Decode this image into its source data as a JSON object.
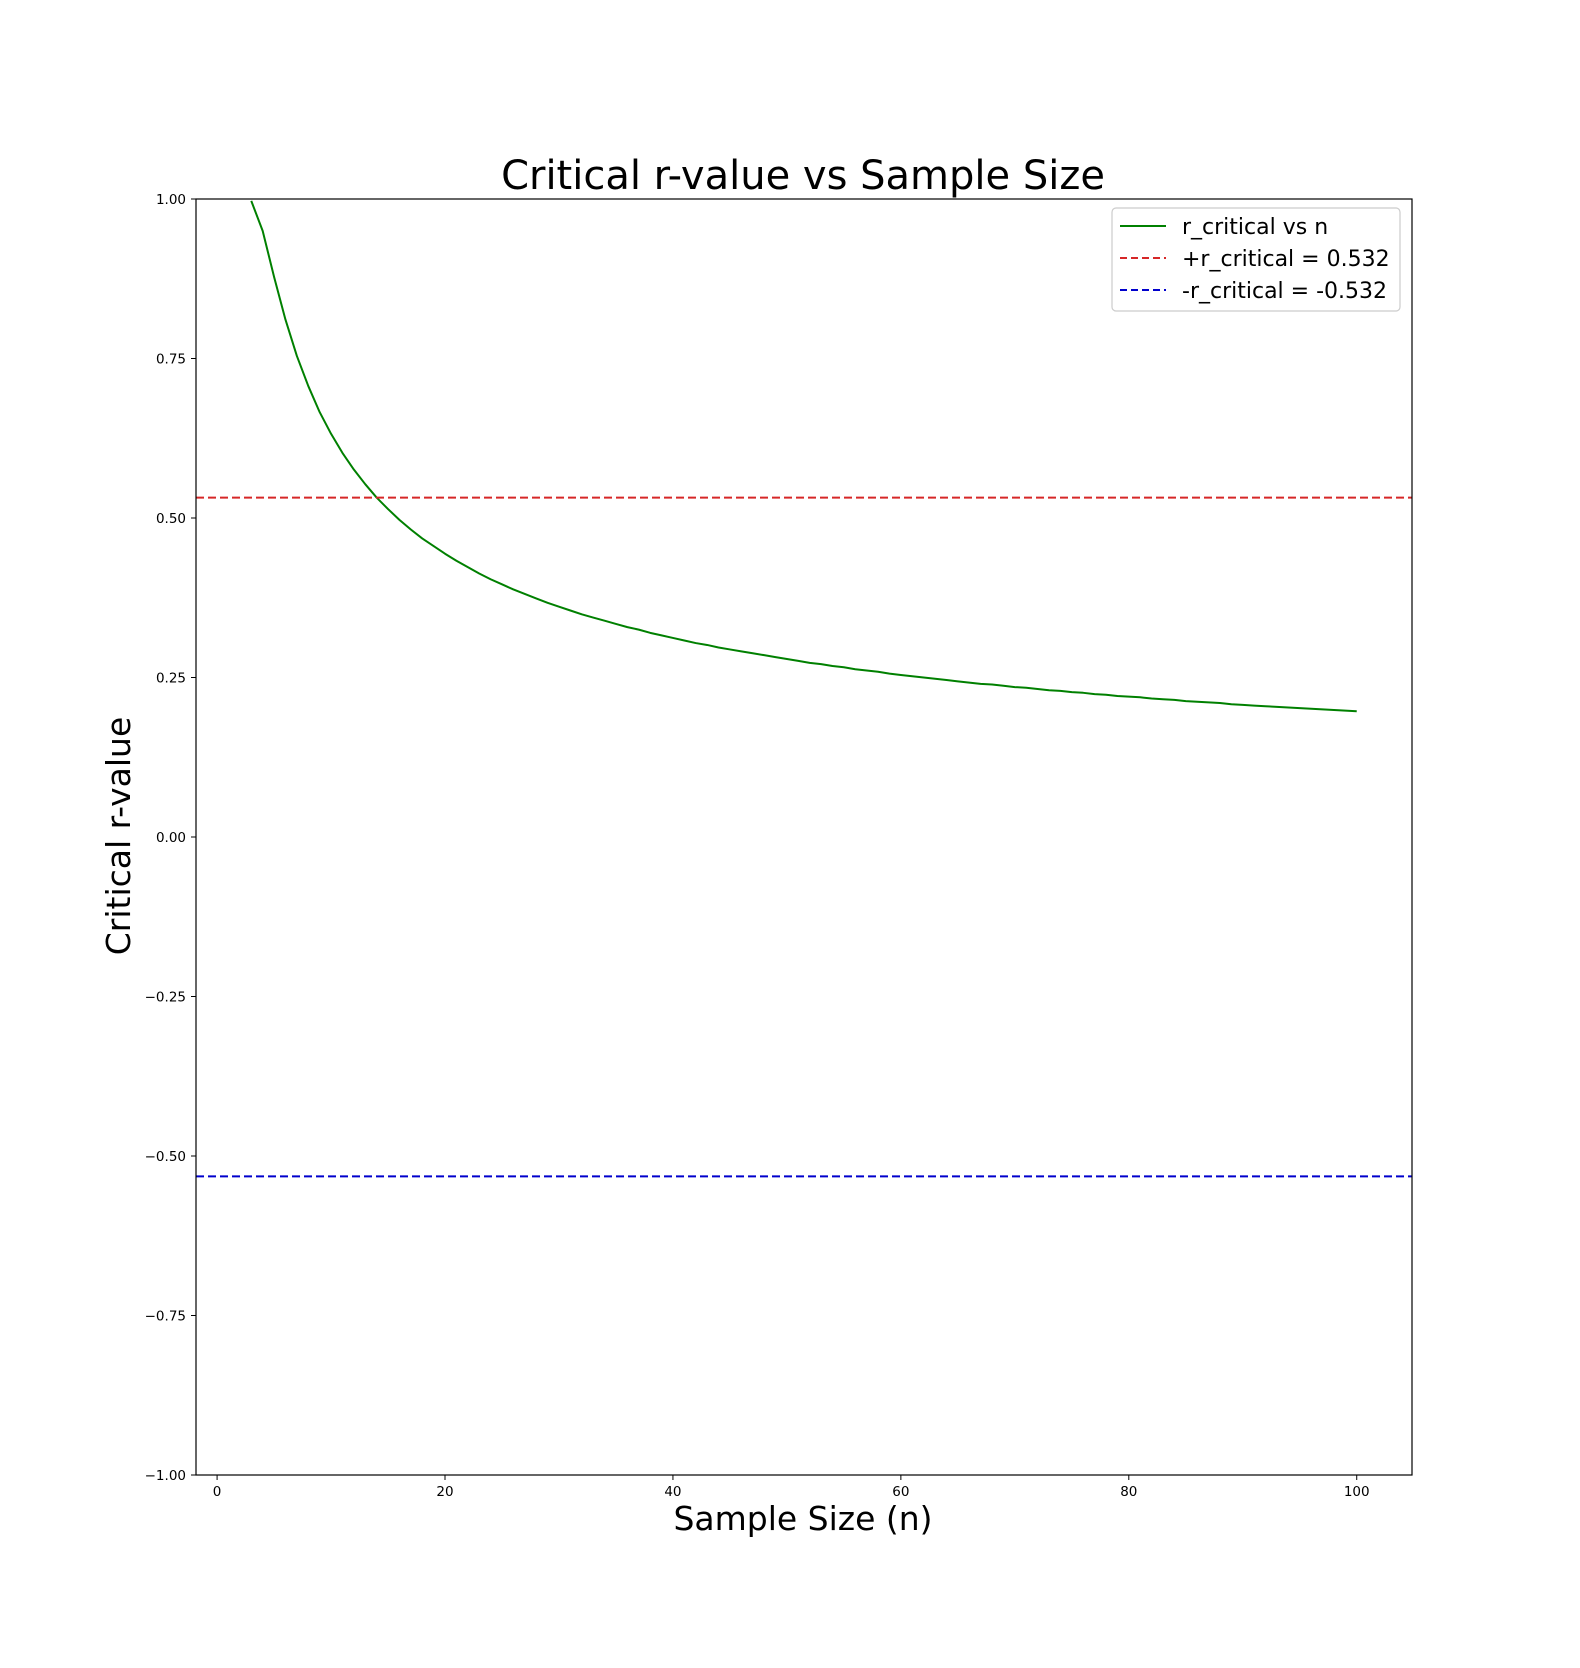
{
  "chart_data": {
    "type": "line",
    "title": "Critical r-value vs Sample Size",
    "xlabel": "Sample Size (n)",
    "ylabel": "Critical r-value",
    "xlim": [
      -1.85,
      104.85
    ],
    "ylim": [
      -1.0,
      1.0
    ],
    "xticks": [
      0,
      20,
      40,
      60,
      80,
      100
    ],
    "yticks": [
      -1.0,
      -0.75,
      -0.5,
      -0.25,
      0.0,
      0.25,
      0.5,
      0.75,
      1.0
    ],
    "xtick_labels": [
      "0",
      "20",
      "40",
      "60",
      "80",
      "100"
    ],
    "ytick_labels": [
      "−1.00",
      "−0.75",
      "−0.50",
      "−0.25",
      "0.00",
      "0.25",
      "0.50",
      "0.75",
      "1.00"
    ],
    "grid": false,
    "legend_position": "upper right",
    "series": [
      {
        "name": "r_critical vs n",
        "kind": "curve",
        "color": "#008000",
        "style": "solid",
        "x": [
          3,
          4,
          5,
          6,
          7,
          8,
          9,
          10,
          11,
          12,
          13,
          14,
          15,
          16,
          17,
          18,
          19,
          20,
          21,
          22,
          23,
          24,
          25,
          26,
          27,
          28,
          29,
          30,
          31,
          32,
          33,
          34,
          35,
          36,
          37,
          38,
          39,
          40,
          41,
          42,
          43,
          44,
          45,
          46,
          47,
          48,
          49,
          50,
          51,
          52,
          53,
          54,
          55,
          56,
          57,
          58,
          59,
          60,
          61,
          62,
          63,
          64,
          65,
          66,
          67,
          68,
          69,
          70,
          71,
          72,
          73,
          74,
          75,
          76,
          77,
          78,
          79,
          80,
          81,
          82,
          83,
          84,
          85,
          86,
          87,
          88,
          89,
          90,
          91,
          92,
          93,
          94,
          95,
          96,
          97,
          98,
          99,
          100
        ],
        "y": [
          0.997,
          0.95,
          0.878,
          0.811,
          0.754,
          0.707,
          0.666,
          0.632,
          0.602,
          0.576,
          0.553,
          0.532,
          0.514,
          0.497,
          0.482,
          0.468,
          0.456,
          0.444,
          0.433,
          0.423,
          0.413,
          0.404,
          0.396,
          0.388,
          0.381,
          0.374,
          0.367,
          0.361,
          0.355,
          0.349,
          0.344,
          0.339,
          0.334,
          0.329,
          0.325,
          0.32,
          0.316,
          0.312,
          0.308,
          0.304,
          0.301,
          0.297,
          0.294,
          0.291,
          0.288,
          0.285,
          0.282,
          0.279,
          0.276,
          0.273,
          0.271,
          0.268,
          0.266,
          0.263,
          0.261,
          0.259,
          0.256,
          0.254,
          0.252,
          0.25,
          0.248,
          0.246,
          0.244,
          0.242,
          0.24,
          0.239,
          0.237,
          0.235,
          0.234,
          0.232,
          0.23,
          0.229,
          0.227,
          0.226,
          0.224,
          0.223,
          0.221,
          0.22,
          0.219,
          0.217,
          0.216,
          0.215,
          0.213,
          0.212,
          0.211,
          0.21,
          0.208,
          0.207,
          0.206,
          0.205,
          0.204,
          0.203,
          0.202,
          0.201,
          0.2,
          0.199,
          0.198,
          0.197
        ]
      },
      {
        "name": "+r_critical = 0.532",
        "kind": "hline",
        "y": 0.532,
        "color": "#d62728",
        "style": "dashed"
      },
      {
        "name": "-r_critical = -0.532",
        "kind": "hline",
        "y": -0.532,
        "color": "#0000cc",
        "style": "dashed"
      }
    ]
  }
}
